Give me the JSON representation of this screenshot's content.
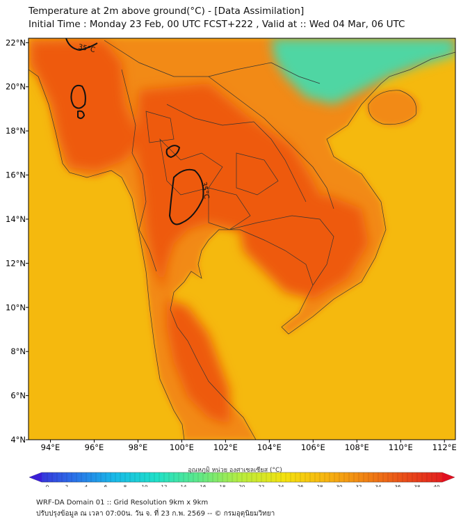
{
  "title": {
    "line1": "Temperature at 2m above ground(°C) - [Data Assimilation]",
    "line2": "Initial Time : Monday 23 Feb, 00 UTC FCST+222 , Valid at :: Wed 04 Mar, 06 UTC"
  },
  "map": {
    "lon_range": [
      93,
      112.5
    ],
    "lat_range": [
      4,
      22.2
    ],
    "lon_ticks": [
      "94°E",
      "96°E",
      "98°E",
      "100°E",
      "102°E",
      "104°E",
      "106°E",
      "108°E",
      "110°E",
      "112°E"
    ],
    "lat_ticks": [
      "4°N",
      "6°N",
      "8°N",
      "10°N",
      "12°N",
      "14°N",
      "16°N",
      "18°N",
      "20°N",
      "22°N"
    ],
    "contour_labels": [
      "35°C",
      "35°C"
    ],
    "colors": {
      "sea": "#f5b90e",
      "land_hot": "#ee5a0e",
      "land_warm": "#f28a16",
      "cool_north": "#4fd6a3",
      "contour": "#111111",
      "border": "#333333"
    }
  },
  "colorbar": {
    "title": "อุณหภูมิ หน่วย องศาเซลเซียส (°C)",
    "ticks": [
      "0",
      "2",
      "4",
      "6",
      "8",
      "10",
      "12",
      "14",
      "16",
      "18",
      "20",
      "22",
      "24",
      "26",
      "28",
      "30",
      "32",
      "34",
      "36",
      "38",
      "40"
    ],
    "gradient": [
      "#3a1fd6",
      "#2b6de8",
      "#19b9e8",
      "#1fe0c8",
      "#5fe887",
      "#b9ec3d",
      "#f4e10e",
      "#f6b312",
      "#f07d14",
      "#e8441a",
      "#e01020"
    ]
  },
  "footer": {
    "line1": "WRF-DA Domain 01 :: Grid Resolution 9km x 9km",
    "line2": "ปรับปรุงข้อมูล ณ เวลา 07:00น. วัน จ. ที่ 23 ก.พ. 2569 -- © กรมอุตุนิยมวิทยา"
  }
}
